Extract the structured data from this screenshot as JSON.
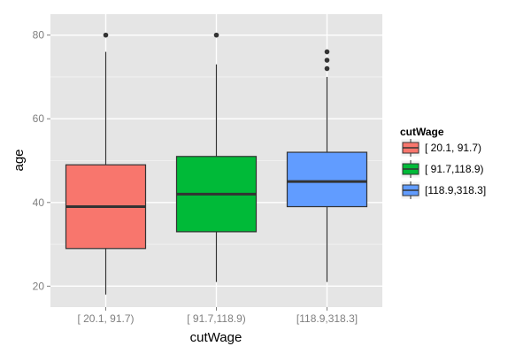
{
  "chart_data": {
    "type": "boxplot",
    "xlabel": "cutWage",
    "ylabel": "age",
    "ylim": [
      15,
      85
    ],
    "yticks": [
      20,
      40,
      60,
      80
    ],
    "categories": [
      "[ 20.1, 91.7)",
      "[ 91.7,118.9)",
      "[118.9,318.3]"
    ],
    "boxes": [
      {
        "category": "[ 20.1, 91.7)",
        "whisker_low": 18,
        "q1": 29,
        "median": 39,
        "q3": 49,
        "whisker_high": 76,
        "outliers": [
          80
        ],
        "color": "#F8766D"
      },
      {
        "category": "[ 91.7,118.9)",
        "whisker_low": 21,
        "q1": 33,
        "median": 42,
        "q3": 51,
        "whisker_high": 73,
        "outliers": [
          80
        ],
        "color": "#00BA38"
      },
      {
        "category": "[118.9,318.3]",
        "whisker_low": 21,
        "q1": 39,
        "median": 45,
        "q3": 52,
        "whisker_high": 70,
        "outliers": [
          72,
          74,
          76
        ],
        "color": "#619CFF"
      }
    ],
    "grid": true,
    "legend": {
      "title": "cutWage",
      "position": "right",
      "entries": [
        "[ 20.1, 91.7)",
        "[ 91.7,118.9)",
        "[118.9,318.3]"
      ]
    },
    "colors": {
      "panel": "#E5E5E5",
      "grid_major": "#FFFFFF",
      "grid_minor": "#F2F2F2",
      "tick_text": "#7F7F7F"
    }
  }
}
